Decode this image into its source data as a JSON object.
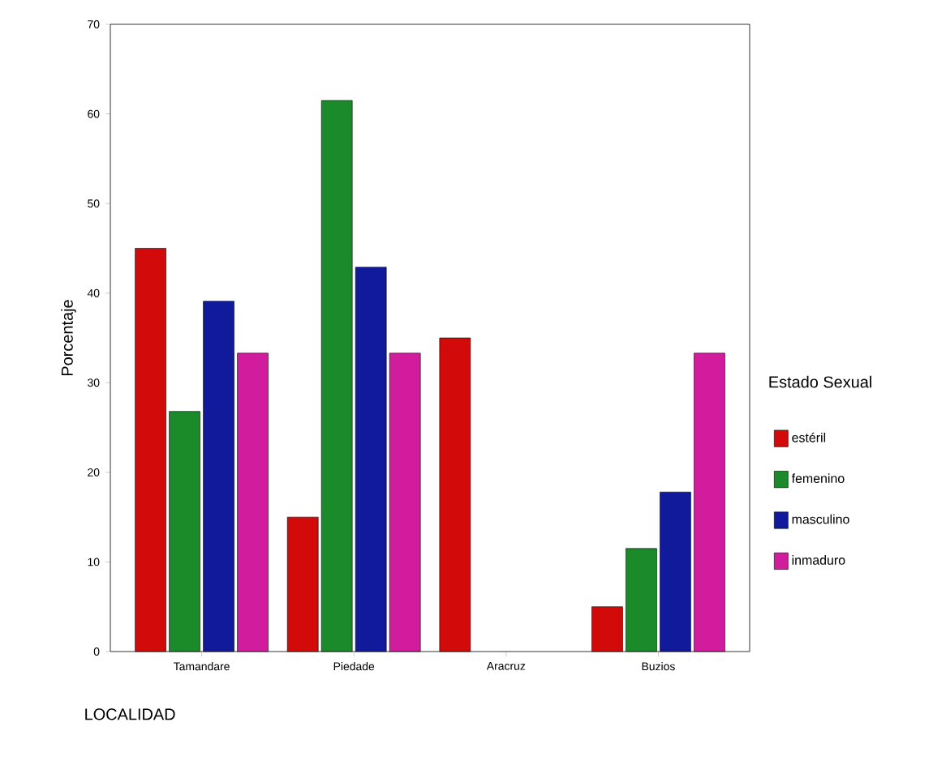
{
  "chart_data": {
    "type": "bar",
    "xlabel": "LOCALIDAD",
    "ylabel": "Porcentaje",
    "legend_title": "Estado Sexual",
    "legend": "right",
    "categories": [
      "Tamandare",
      "Piedade",
      "Aracruz",
      "Buzios"
    ],
    "series": [
      {
        "name": "estéril",
        "color": "#d20a0a",
        "values": [
          45,
          15,
          35,
          5
        ]
      },
      {
        "name": "femenino",
        "color": "#1a8a2a",
        "values": [
          26.8,
          61.5,
          null,
          11.5
        ]
      },
      {
        "name": "masculino",
        "color": "#101a9a",
        "values": [
          39.1,
          42.9,
          null,
          17.8
        ]
      },
      {
        "name": "inmaduro",
        "color": "#d21c9e",
        "values": [
          33.3,
          33.3,
          null,
          33.3
        ]
      }
    ],
    "ylim": [
      0,
      70
    ],
    "yticks": [
      0,
      10,
      20,
      30,
      40,
      50,
      60,
      70
    ]
  }
}
